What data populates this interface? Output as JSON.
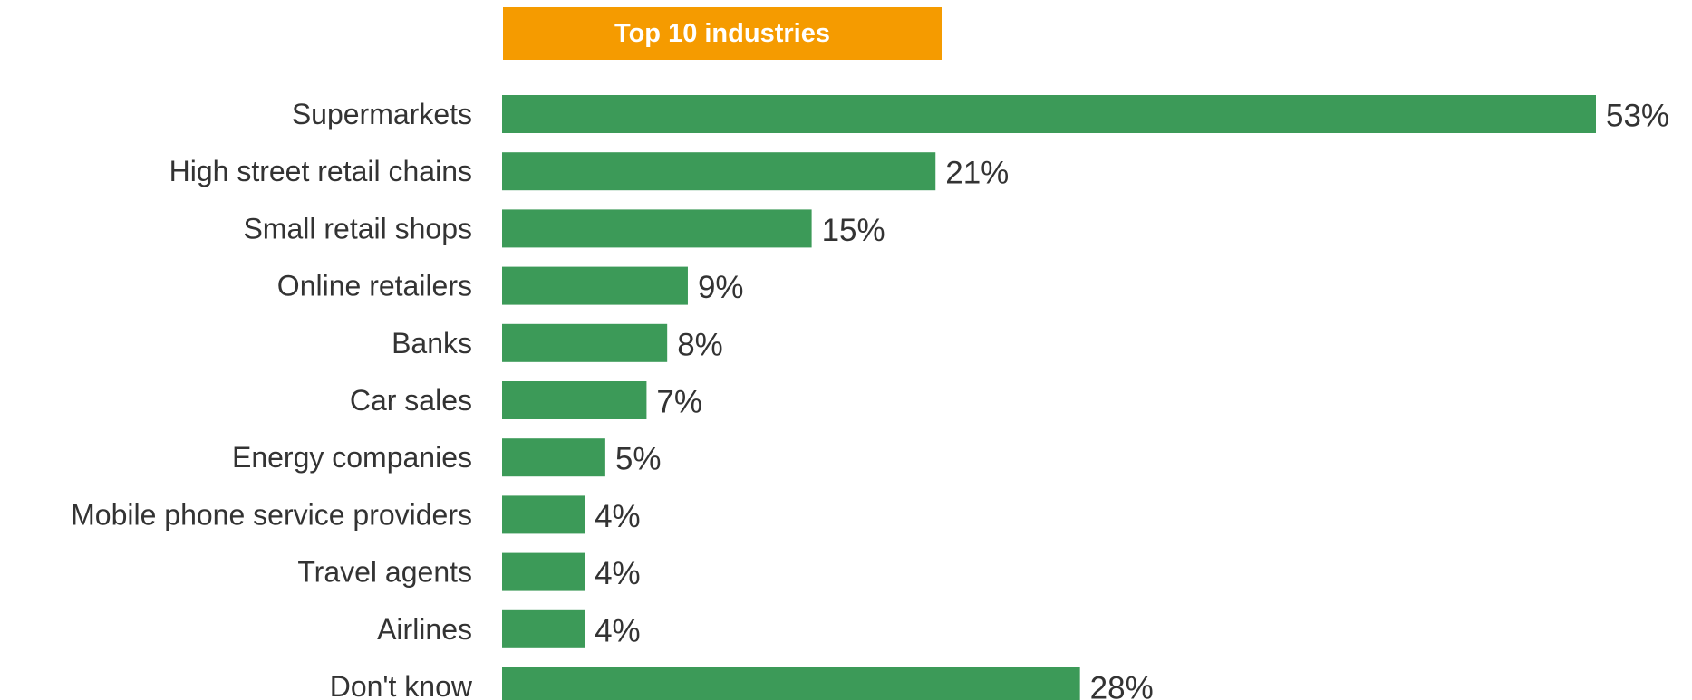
{
  "header": {
    "badge_text": "Top 10 industries",
    "badge_color": "#f59b00"
  },
  "chart_data": {
    "type": "bar",
    "orientation": "horizontal",
    "title": "Top 10 industries",
    "categories": [
      "Supermarkets",
      "High street retail chains",
      "Small retail shops",
      "Online retailers",
      "Banks",
      "Car sales",
      "Energy companies",
      "Mobile phone service providers",
      "Travel agents",
      "Airlines",
      "Don't know"
    ],
    "values": [
      53,
      21,
      15,
      9,
      8,
      7,
      5,
      4,
      4,
      4,
      28
    ],
    "value_labels": [
      "53%",
      "21%",
      "15%",
      "9%",
      "8%",
      "7%",
      "5%",
      "4%",
      "4%",
      "4%",
      "28%"
    ],
    "unit": "%",
    "bar_color": "#3c9a58",
    "xlim": [
      0,
      53
    ],
    "grid": false,
    "legend": "none"
  }
}
